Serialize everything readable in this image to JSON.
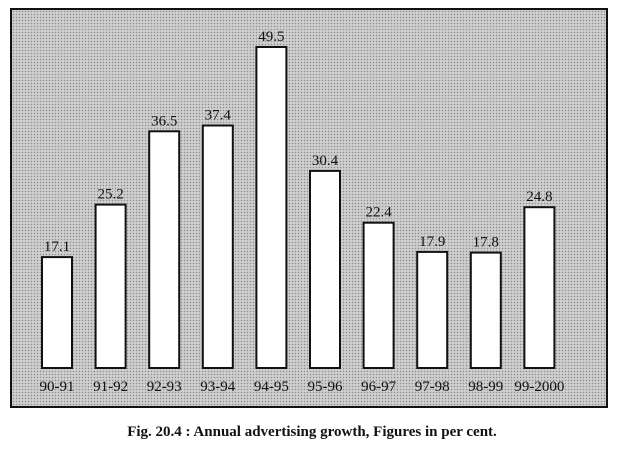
{
  "caption": "Fig. 20.4 : Annual advertising growth, Figures in per cent.",
  "chart_data": {
    "type": "bar",
    "title": "",
    "xlabel": "",
    "ylabel": "",
    "categories": [
      "90-91",
      "91-92",
      "92-93",
      "93-94",
      "94-95",
      "95-96",
      "96-97",
      "97-98",
      "98-99",
      "99-2000"
    ],
    "values": [
      17.1,
      25.2,
      36.5,
      37.4,
      49.5,
      30.4,
      22.4,
      17.9,
      17.8,
      24.8
    ],
    "value_labels": [
      "17.1",
      "25.2",
      "36.5",
      "37.4",
      "49.5",
      "30.4",
      "22.4",
      "17.9",
      "17.8",
      "24.8"
    ],
    "ylim": [
      0,
      49.5
    ],
    "grid": false,
    "legend": "none",
    "colors": {
      "bar_fill": "#ffffff",
      "bar_stroke": "#111111",
      "background": "#cfcfcf"
    }
  }
}
